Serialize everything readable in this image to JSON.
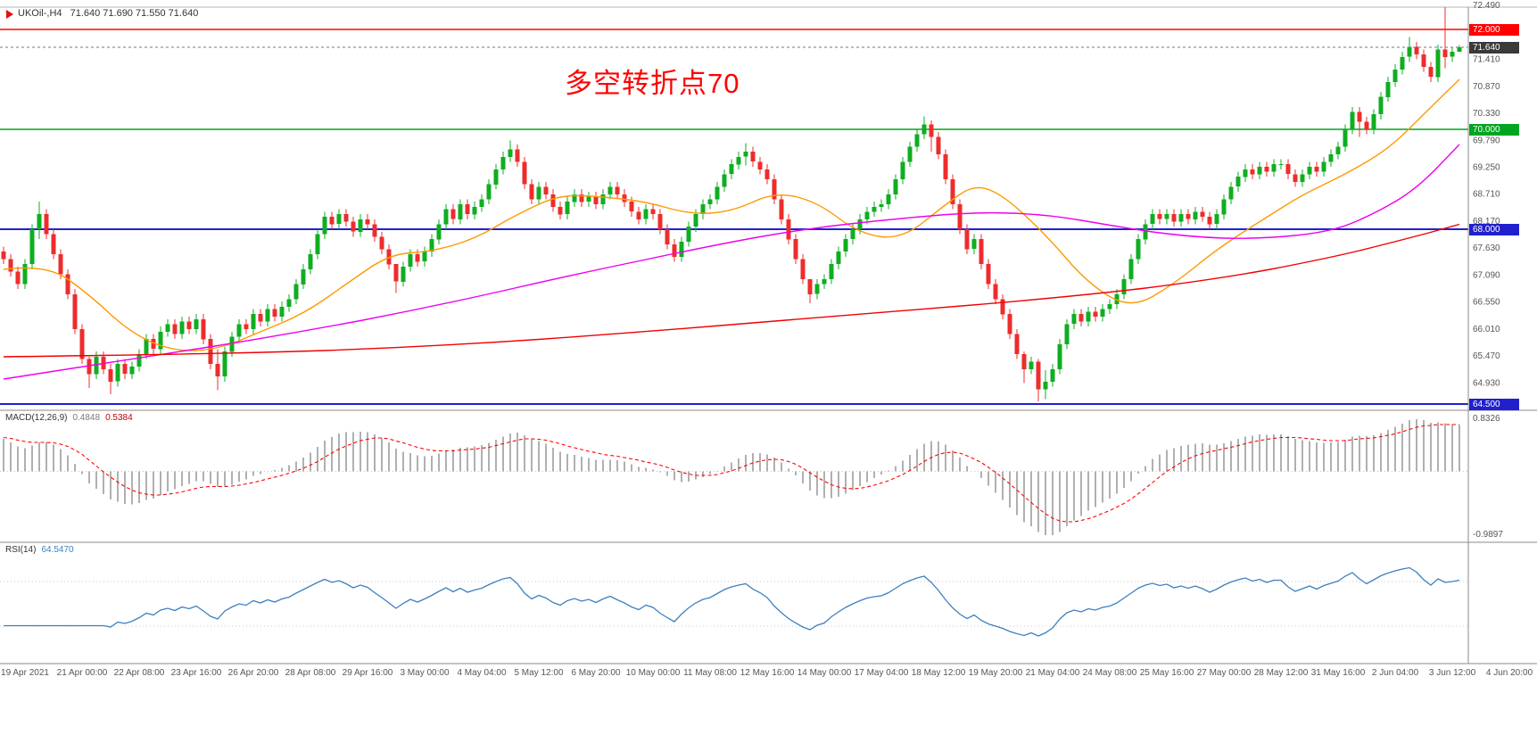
{
  "window": {
    "symbol": "UKOil-,H4",
    "ohlc": "71.640 71.690 71.550 71.640"
  },
  "annotation": {
    "text": "多空转折点70",
    "color": "#FF0000"
  },
  "price_axis": {
    "grid_labels": [
      "72.490",
      "71.410",
      "70.870",
      "70.330",
      "69.790",
      "69.250",
      "68.710",
      "68.170",
      "67.630",
      "67.090",
      "66.550",
      "66.010",
      "65.470",
      "64.930"
    ],
    "current": {
      "value": "71.640",
      "price": 71.64,
      "badge_bg": "#3a3a3a"
    }
  },
  "hlines": [
    {
      "price": 72.0,
      "label": "72.000",
      "color": "#ff0000",
      "width": 1.6
    },
    {
      "price": 70.0,
      "label": "70.000",
      "color": "#00a520",
      "width": 1.6
    },
    {
      "price": 68.0,
      "label": "68.000",
      "color": "#2020cc",
      "width": 2
    },
    {
      "price": 64.5,
      "label": "64.500",
      "color": "#2020cc",
      "width": 2
    }
  ],
  "time_axis": [
    "19 Apr 2021",
    "21 Apr 00:00",
    "22 Apr 08:00",
    "23 Apr 16:00",
    "26 Apr 20:00",
    "28 Apr 08:00",
    "29 Apr 16:00",
    "3 May 00:00",
    "4 May 04:00",
    "5 May 12:00",
    "6 May 20:00",
    "10 May 00:00",
    "11 May 08:00",
    "12 May 16:00",
    "14 May 00:00",
    "17 May 04:00",
    "18 May 12:00",
    "19 May 20:00",
    "21 May 04:00",
    "24 May 08:00",
    "25 May 16:00",
    "27 May 00:00",
    "28 May 12:00",
    "31 May 16:00",
    "2 Jun 04:00",
    "3 Jun 12:00",
    "4 Jun 20:00"
  ],
  "panels": {
    "macd": {
      "title": "MACD(12,26,9)",
      "value_main": "0.4848",
      "value_signal": "0.5384",
      "axis_max": "0.8326",
      "axis_min": "-0.9897"
    },
    "rsi": {
      "title": "RSI(14)",
      "value": "64.5470"
    }
  },
  "chart_data": {
    "type": "candlestick",
    "symbol": "UKOil",
    "timeframe": "H4",
    "visible_price_range": [
      64.39,
      72.49
    ],
    "up_color": "#0eae20",
    "down_color": "#ee2c2c",
    "open_first": 67.55,
    "default_wick": 0.1,
    "closes": [
      67.4,
      67.15,
      66.9,
      67.3,
      68.0,
      68.3,
      67.9,
      67.5,
      67.1,
      66.7,
      66.0,
      65.4,
      65.1,
      65.45,
      65.2,
      64.95,
      65.3,
      65.1,
      65.25,
      65.5,
      65.8,
      65.6,
      65.95,
      66.1,
      65.9,
      66.15,
      66.0,
      66.2,
      65.8,
      65.3,
      65.05,
      65.55,
      65.85,
      66.1,
      66.0,
      66.3,
      66.15,
      66.4,
      66.25,
      66.45,
      66.6,
      66.9,
      67.2,
      67.5,
      67.9,
      68.25,
      68.1,
      68.3,
      68.15,
      67.95,
      68.2,
      68.1,
      67.85,
      67.6,
      67.3,
      66.95,
      67.25,
      67.5,
      67.35,
      67.55,
      67.8,
      68.1,
      68.4,
      68.2,
      68.5,
      68.3,
      68.45,
      68.6,
      68.9,
      69.2,
      69.45,
      69.6,
      69.35,
      68.9,
      68.6,
      68.85,
      68.7,
      68.45,
      68.3,
      68.55,
      68.7,
      68.55,
      68.65,
      68.5,
      68.7,
      68.85,
      68.7,
      68.55,
      68.35,
      68.2,
      68.4,
      68.3,
      68.0,
      67.7,
      67.45,
      67.75,
      68.05,
      68.3,
      68.5,
      68.6,
      68.85,
      69.1,
      69.3,
      69.45,
      69.55,
      69.35,
      69.2,
      69.0,
      68.6,
      68.2,
      67.8,
      67.4,
      67.0,
      66.7,
      66.9,
      67.0,
      67.3,
      67.55,
      67.8,
      68.0,
      68.2,
      68.35,
      68.45,
      68.5,
      68.7,
      69.0,
      69.35,
      69.65,
      69.9,
      70.1,
      69.85,
      69.5,
      69.0,
      68.5,
      68.0,
      67.6,
      67.8,
      67.3,
      66.9,
      66.6,
      66.3,
      65.9,
      65.5,
      65.2,
      65.35,
      64.8,
      64.95,
      65.2,
      65.7,
      66.1,
      66.3,
      66.15,
      66.35,
      66.25,
      66.4,
      66.5,
      66.7,
      67.0,
      67.4,
      67.8,
      68.1,
      68.3,
      68.2,
      68.3,
      68.15,
      68.3,
      68.2,
      68.35,
      68.25,
      68.1,
      68.3,
      68.6,
      68.85,
      69.05,
      69.2,
      69.1,
      69.25,
      69.15,
      69.3,
      69.3,
      69.1,
      68.95,
      69.1,
      69.25,
      69.15,
      69.35,
      69.5,
      69.65,
      70.0,
      70.35,
      70.15,
      70.0,
      70.3,
      70.65,
      70.95,
      71.2,
      71.45,
      71.65,
      71.5,
      71.25,
      71.05,
      71.6,
      71.45,
      71.55,
      71.64
    ],
    "wick_overrides": {
      "5": [
        68.55,
        67.8
      ],
      "12": [
        65.45,
        64.82
      ],
      "15": [
        65.3,
        64.7
      ],
      "30": [
        65.6,
        64.78
      ],
      "55": [
        67.3,
        66.72
      ],
      "71": [
        69.78,
        69.35
      ],
      "104": [
        69.72,
        69.28
      ],
      "113": [
        67.0,
        66.52
      ],
      "129": [
        70.26,
        69.8
      ],
      "130": [
        70.18,
        69.55
      ],
      "143": [
        65.55,
        64.92
      ],
      "145": [
        65.4,
        64.55
      ],
      "146": [
        65.18,
        64.6
      ],
      "190": [
        70.45,
        69.85
      ],
      "197": [
        71.85,
        71.35
      ],
      "202": [
        72.45,
        71.22
      ],
      "204": [
        71.69,
        71.55
      ]
    },
    "moving_averages": [
      {
        "name": "ma-fast",
        "color": "#ff9900",
        "points": [
          [
            0,
            67.2
          ],
          [
            6,
            67.3
          ],
          [
            12,
            66.7
          ],
          [
            18,
            65.9
          ],
          [
            24,
            65.55
          ],
          [
            30,
            65.6
          ],
          [
            36,
            65.95
          ],
          [
            42,
            66.3
          ],
          [
            48,
            66.9
          ],
          [
            54,
            67.5
          ],
          [
            60,
            67.55
          ],
          [
            66,
            67.8
          ],
          [
            72,
            68.3
          ],
          [
            78,
            68.7
          ],
          [
            84,
            68.65
          ],
          [
            90,
            68.55
          ],
          [
            96,
            68.3
          ],
          [
            102,
            68.35
          ],
          [
            108,
            68.75
          ],
          [
            114,
            68.55
          ],
          [
            120,
            67.9
          ],
          [
            126,
            67.8
          ],
          [
            132,
            68.5
          ],
          [
            136,
            68.9
          ],
          [
            140,
            68.7
          ],
          [
            146,
            67.9
          ],
          [
            152,
            66.9
          ],
          [
            158,
            66.4
          ],
          [
            164,
            66.9
          ],
          [
            170,
            67.6
          ],
          [
            176,
            68.15
          ],
          [
            182,
            68.7
          ],
          [
            188,
            69.1
          ],
          [
            194,
            69.6
          ],
          [
            199,
            70.3
          ],
          [
            204,
            71.0
          ]
        ]
      },
      {
        "name": "ma-mid",
        "color": "#ee00ee",
        "points": [
          [
            0,
            65.0
          ],
          [
            20,
            65.45
          ],
          [
            40,
            65.9
          ],
          [
            60,
            66.45
          ],
          [
            80,
            67.1
          ],
          [
            100,
            67.7
          ],
          [
            112,
            68.0
          ],
          [
            124,
            68.2
          ],
          [
            136,
            68.35
          ],
          [
            146,
            68.3
          ],
          [
            156,
            68.05
          ],
          [
            166,
            67.85
          ],
          [
            176,
            67.8
          ],
          [
            186,
            67.95
          ],
          [
            192,
            68.3
          ],
          [
            198,
            68.8
          ],
          [
            204,
            69.7
          ]
        ]
      },
      {
        "name": "ma-slow",
        "color": "#f00000",
        "points": [
          [
            0,
            65.45
          ],
          [
            30,
            65.5
          ],
          [
            60,
            65.65
          ],
          [
            90,
            65.95
          ],
          [
            120,
            66.3
          ],
          [
            150,
            66.65
          ],
          [
            170,
            67.0
          ],
          [
            185,
            67.4
          ],
          [
            195,
            67.75
          ],
          [
            204,
            68.1
          ]
        ]
      }
    ],
    "macd_params": {
      "fast": 12,
      "slow": 26,
      "signal": 9
    },
    "rsi_period": 14,
    "macd_hist_color": "#b0b0b0",
    "macd_signal_color": "#ff0000",
    "rsi_color": "#3e80c0"
  }
}
